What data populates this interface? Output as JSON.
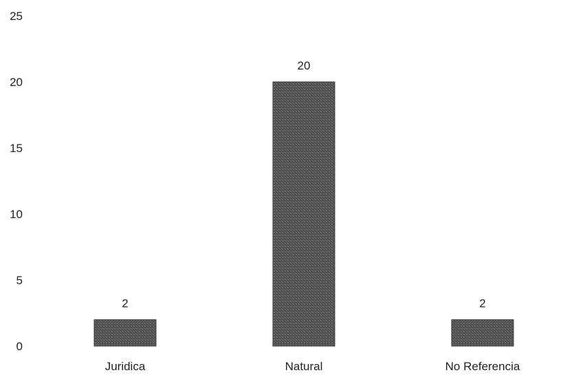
{
  "chart_data": {
    "type": "bar",
    "title": "",
    "xlabel": "",
    "ylabel": "",
    "categories": [
      "Juridica",
      "Natural",
      "No Referencia"
    ],
    "values": [
      2,
      20,
      2
    ],
    "data_labels": [
      "2",
      "20",
      "2"
    ],
    "ylim": [
      0,
      25
    ],
    "y_ticks": [
      0,
      5,
      10,
      15,
      20,
      25
    ],
    "y_tick_labels": [
      "0",
      "5",
      "10",
      "15",
      "20",
      "25"
    ],
    "grid": false,
    "legend": "none",
    "bar_color": "#555555"
  }
}
